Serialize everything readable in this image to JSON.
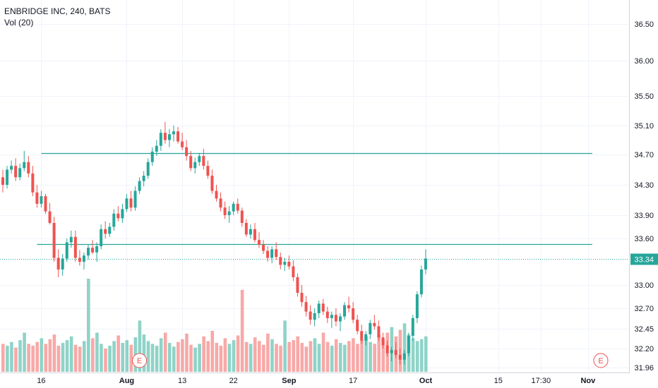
{
  "legend": {
    "symbol_line": "ENBRIDGE INC, 240, BATS",
    "volume_line": "Vol (20)"
  },
  "colors": {
    "up": "#26a69a",
    "down": "#ef5350",
    "vol_up": "#8fd3c8",
    "vol_down": "#f7a9a7",
    "hline": "#26a69a",
    "price_tag": "#26a69a",
    "earnings": "#ef5350"
  },
  "chart_data": {
    "type": "candlestick",
    "price_axis": {
      "ticks": [
        {
          "value": 36.5,
          "label": "36.50"
        },
        {
          "value": 36.0,
          "label": "36.00"
        },
        {
          "value": 35.5,
          "label": "35.50"
        },
        {
          "value": 35.1,
          "label": "35.10"
        },
        {
          "value": 34.7,
          "label": "34.70"
        },
        {
          "value": 34.3,
          "label": "34.30"
        },
        {
          "value": 33.9,
          "label": "33.90"
        },
        {
          "value": 33.6,
          "label": "33.60"
        },
        {
          "value": 33.0,
          "label": "33.00"
        },
        {
          "value": 32.7,
          "label": "32.70"
        },
        {
          "value": 32.45,
          "label": "32.45"
        },
        {
          "value": 32.2,
          "label": "32.20"
        },
        {
          "value": 31.96,
          "label": "31.96"
        }
      ]
    },
    "time_axis": {
      "labels": [
        {
          "label": "16",
          "bar": 9,
          "bold": false
        },
        {
          "label": "Aug",
          "bar": 29,
          "bold": true
        },
        {
          "label": "13",
          "bar": 42,
          "bold": false
        },
        {
          "label": "22",
          "bar": 54,
          "bold": false
        },
        {
          "label": "Sep",
          "bar": 67,
          "bold": true
        },
        {
          "label": "17",
          "bar": 82,
          "bold": false
        },
        {
          "label": "Oct",
          "bar": 99,
          "bold": true
        },
        {
          "label": "15",
          "bar": 116,
          "bold": false
        },
        {
          "label": "17:30",
          "bar": 126,
          "bold": false
        },
        {
          "label": "Nov",
          "bar": 137,
          "bold": true
        }
      ]
    },
    "horizontal_lines": [
      {
        "price": 34.72,
        "from_bar": 9,
        "to_bar": 138
      },
      {
        "price": 33.53,
        "from_bar": 8,
        "to_bar": 138
      }
    ],
    "last_price": {
      "value": 33.34,
      "label": "33.34"
    },
    "earnings_markers": [
      {
        "label": "E",
        "bar": 32
      },
      {
        "label": "E",
        "bar": 140
      }
    ],
    "candles": [
      [
        34.4,
        34.5,
        34.2,
        34.3
      ],
      [
        34.3,
        34.55,
        34.25,
        34.5
      ],
      [
        34.5,
        34.62,
        34.45,
        34.55
      ],
      [
        34.55,
        34.65,
        34.35,
        34.4
      ],
      [
        34.4,
        34.58,
        34.36,
        34.52
      ],
      [
        34.52,
        34.75,
        34.48,
        34.6
      ],
      [
        34.6,
        34.68,
        34.4,
        34.45
      ],
      [
        34.45,
        34.55,
        34.15,
        34.2
      ],
      [
        34.2,
        34.3,
        34.0,
        34.05
      ],
      [
        34.05,
        34.22,
        34.0,
        34.15
      ],
      [
        34.15,
        34.18,
        33.92,
        33.95
      ],
      [
        33.95,
        34.06,
        33.78,
        33.8
      ],
      [
        33.8,
        33.88,
        33.3,
        33.35
      ],
      [
        33.35,
        33.46,
        33.1,
        33.2
      ],
      [
        33.2,
        33.4,
        33.12,
        33.34
      ],
      [
        33.34,
        33.6,
        33.3,
        33.55
      ],
      [
        33.55,
        33.7,
        33.48,
        33.62
      ],
      [
        33.62,
        33.7,
        33.3,
        33.35
      ],
      [
        33.35,
        33.45,
        33.25,
        33.3
      ],
      [
        33.3,
        33.42,
        33.2,
        33.38
      ],
      [
        33.38,
        33.52,
        33.33,
        33.48
      ],
      [
        33.48,
        33.58,
        33.4,
        33.42
      ],
      [
        33.42,
        33.55,
        33.3,
        33.5
      ],
      [
        33.5,
        33.78,
        33.46,
        33.72
      ],
      [
        33.72,
        33.82,
        33.6,
        33.66
      ],
      [
        33.66,
        33.8,
        33.62,
        33.75
      ],
      [
        33.75,
        33.98,
        33.7,
        33.92
      ],
      [
        33.92,
        34.02,
        33.82,
        33.86
      ],
      [
        33.86,
        34.05,
        33.8,
        33.98
      ],
      [
        33.98,
        34.18,
        33.94,
        34.12
      ],
      [
        34.12,
        34.22,
        33.95,
        34.0
      ],
      [
        34.0,
        34.28,
        33.96,
        34.22
      ],
      [
        34.22,
        34.4,
        34.18,
        34.35
      ],
      [
        34.35,
        34.48,
        34.28,
        34.42
      ],
      [
        34.42,
        34.65,
        34.38,
        34.6
      ],
      [
        34.6,
        34.8,
        34.55,
        34.74
      ],
      [
        34.74,
        34.9,
        34.68,
        34.82
      ],
      [
        34.82,
        35.05,
        34.75,
        35.0
      ],
      [
        35.0,
        35.15,
        34.85,
        34.9
      ],
      [
        34.9,
        35.05,
        34.8,
        34.98
      ],
      [
        34.98,
        35.1,
        34.88,
        35.02
      ],
      [
        35.02,
        35.08,
        34.85,
        34.88
      ],
      [
        34.88,
        35.0,
        34.76,
        34.8
      ],
      [
        34.8,
        34.9,
        34.62,
        34.68
      ],
      [
        34.68,
        34.75,
        34.48,
        34.52
      ],
      [
        34.52,
        34.66,
        34.45,
        34.6
      ],
      [
        34.6,
        34.72,
        34.55,
        34.68
      ],
      [
        34.68,
        34.78,
        34.5,
        34.55
      ],
      [
        34.55,
        34.62,
        34.38,
        34.42
      ],
      [
        34.42,
        34.5,
        34.18,
        34.22
      ],
      [
        34.22,
        34.3,
        34.08,
        34.12
      ],
      [
        34.12,
        34.2,
        33.95,
        34.0
      ],
      [
        34.0,
        34.08,
        33.85,
        33.9
      ],
      [
        33.9,
        34.02,
        33.8,
        33.95
      ],
      [
        33.95,
        34.08,
        33.9,
        34.05
      ],
      [
        34.05,
        34.12,
        33.92,
        33.96
      ],
      [
        33.96,
        34.0,
        33.75,
        33.8
      ],
      [
        33.8,
        33.85,
        33.62,
        33.65
      ],
      [
        33.65,
        33.78,
        33.6,
        33.72
      ],
      [
        33.72,
        33.8,
        33.55,
        33.58
      ],
      [
        33.58,
        33.68,
        33.48,
        33.52
      ],
      [
        33.52,
        33.58,
        33.4,
        33.44
      ],
      [
        33.44,
        33.5,
        33.3,
        33.35
      ],
      [
        33.35,
        33.5,
        33.28,
        33.46
      ],
      [
        33.46,
        33.55,
        33.32,
        33.36
      ],
      [
        33.36,
        33.42,
        33.2,
        33.26
      ],
      [
        33.26,
        33.35,
        33.18,
        33.3
      ],
      [
        33.3,
        33.38,
        33.2,
        33.24
      ],
      [
        33.24,
        33.32,
        33.05,
        33.1
      ],
      [
        33.1,
        33.15,
        32.85,
        32.9
      ],
      [
        32.9,
        33.0,
        32.72,
        32.78
      ],
      [
        32.78,
        32.86,
        32.6,
        32.66
      ],
      [
        32.66,
        32.74,
        32.5,
        32.56
      ],
      [
        32.56,
        32.7,
        32.48,
        32.64
      ],
      [
        32.64,
        32.8,
        32.58,
        32.76
      ],
      [
        32.76,
        32.82,
        32.62,
        32.66
      ],
      [
        32.66,
        32.72,
        32.52,
        32.58
      ],
      [
        32.58,
        32.66,
        32.46,
        32.62
      ],
      [
        32.62,
        32.7,
        32.48,
        32.54
      ],
      [
        32.54,
        32.64,
        32.42,
        32.6
      ],
      [
        32.6,
        32.78,
        32.56,
        32.74
      ],
      [
        32.74,
        32.85,
        32.65,
        32.7
      ],
      [
        32.7,
        32.78,
        32.52,
        32.56
      ],
      [
        32.56,
        32.62,
        32.38,
        32.42
      ],
      [
        32.42,
        32.5,
        32.26,
        32.3
      ],
      [
        32.3,
        32.42,
        32.24,
        32.38
      ],
      [
        32.38,
        32.56,
        32.32,
        32.52
      ],
      [
        32.52,
        32.62,
        32.44,
        32.48
      ],
      [
        32.48,
        32.55,
        32.3,
        32.34
      ],
      [
        32.34,
        32.4,
        32.2,
        32.24
      ],
      [
        32.24,
        32.3,
        32.1,
        32.14
      ],
      [
        32.14,
        32.22,
        32.04,
        32.18
      ],
      [
        32.18,
        32.28,
        32.08,
        32.12
      ],
      [
        32.12,
        32.2,
        32.0,
        32.06
      ],
      [
        32.06,
        32.18,
        32.0,
        32.14
      ],
      [
        32.14,
        32.4,
        32.1,
        32.36
      ],
      [
        32.36,
        32.62,
        32.3,
        32.58
      ],
      [
        32.58,
        32.92,
        32.52,
        32.88
      ],
      [
        32.88,
        33.25,
        32.84,
        33.2
      ],
      [
        33.2,
        33.46,
        33.14,
        33.34
      ]
    ],
    "volume_ratio": [
      0.3,
      0.28,
      0.32,
      0.26,
      0.34,
      0.42,
      0.3,
      0.28,
      0.32,
      0.36,
      0.3,
      0.35,
      0.4,
      0.28,
      0.31,
      0.34,
      0.38,
      0.29,
      0.27,
      0.33,
      1.0,
      0.36,
      0.42,
      0.3,
      0.25,
      0.28,
      0.33,
      0.39,
      0.31,
      0.34,
      0.29,
      0.37,
      0.55,
      0.4,
      0.33,
      0.3,
      0.28,
      0.36,
      0.42,
      0.31,
      0.27,
      0.32,
      0.35,
      0.41,
      0.29,
      0.26,
      0.3,
      0.38,
      0.33,
      0.44,
      0.31,
      0.28,
      0.36,
      0.3,
      0.34,
      0.39,
      0.88,
      0.32,
      0.3,
      0.37,
      0.33,
      0.29,
      0.41,
      0.35,
      0.3,
      0.28,
      0.55,
      0.32,
      0.34,
      0.38,
      0.31,
      0.27,
      0.33,
      0.36,
      0.3,
      0.42,
      0.32,
      0.28,
      0.35,
      0.31,
      0.29,
      0.33,
      0.36,
      0.3,
      0.34,
      0.38,
      0.32,
      0.3,
      0.4,
      0.35,
      0.42,
      0.48,
      0.38,
      0.45,
      0.52,
      0.4,
      0.36,
      0.33,
      0.35,
      0.38
    ]
  }
}
